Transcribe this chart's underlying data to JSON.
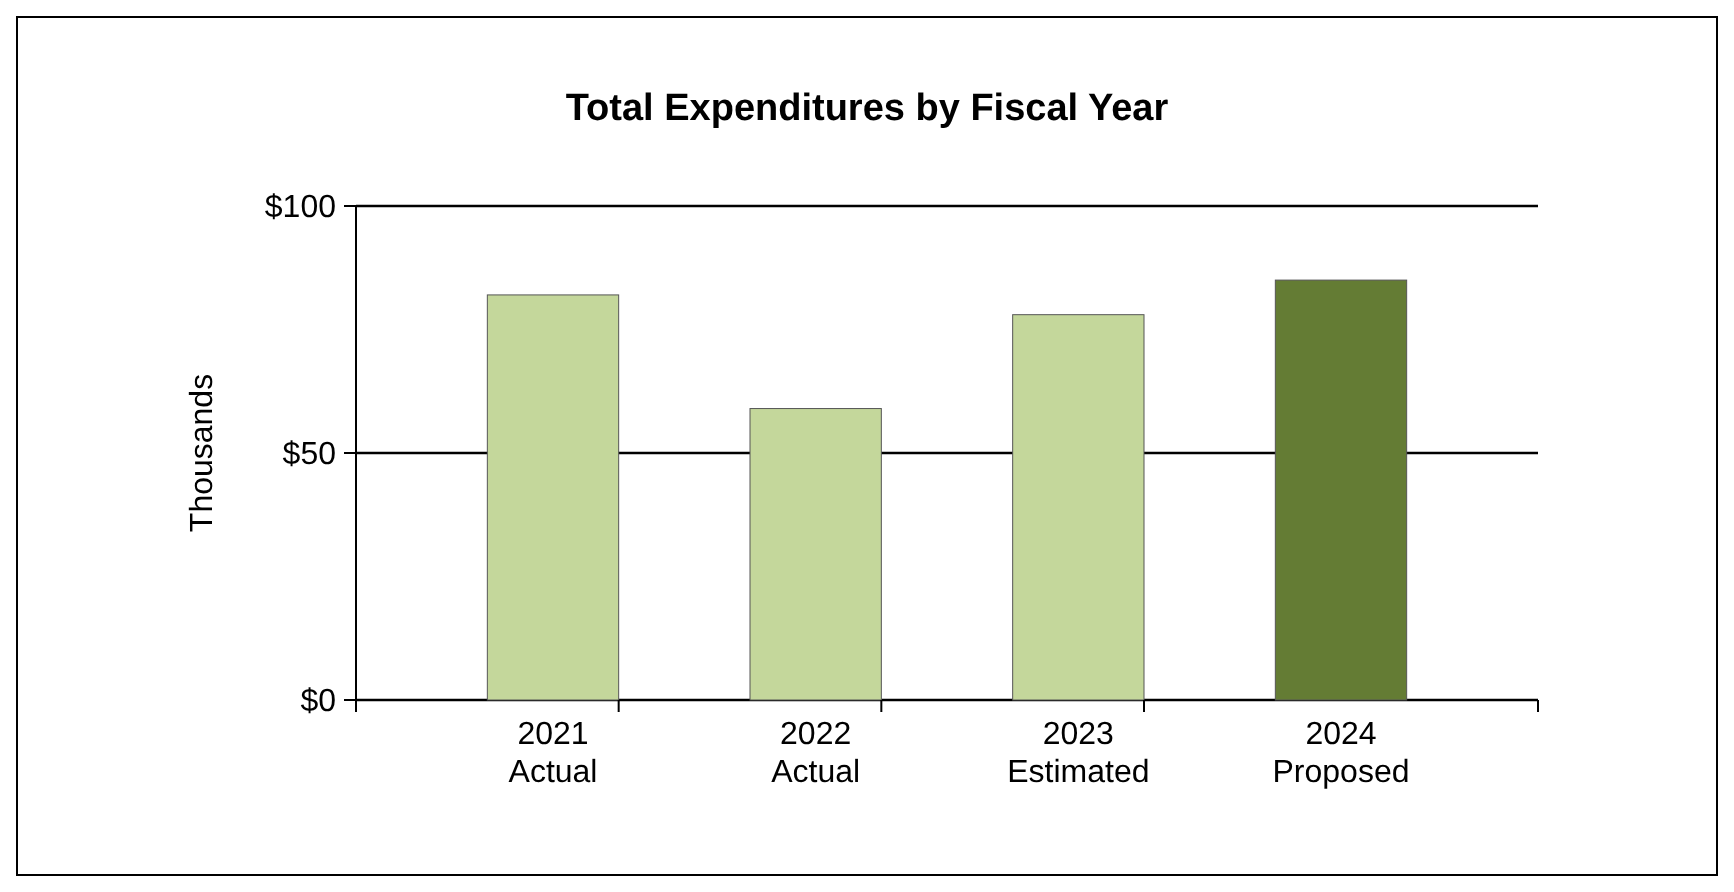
{
  "chart_data": {
    "type": "bar",
    "title": "Total Expenditures by Fiscal Year",
    "ylabel": "Thousands",
    "categories": [
      "2021\nActual",
      "2022\nActual",
      "2023\nEstimated",
      "2024\nProposed"
    ],
    "values": [
      82,
      59,
      78,
      85
    ],
    "colors": [
      "#c4d79b",
      "#c4d79b",
      "#c4d79b",
      "#647c34"
    ],
    "ylim": [
      0,
      100
    ],
    "yticks": [
      {
        "value": 0,
        "label": "$0"
      },
      {
        "value": 50,
        "label": "$50"
      },
      {
        "value": 100,
        "label": "$100"
      }
    ],
    "grid": "y"
  }
}
